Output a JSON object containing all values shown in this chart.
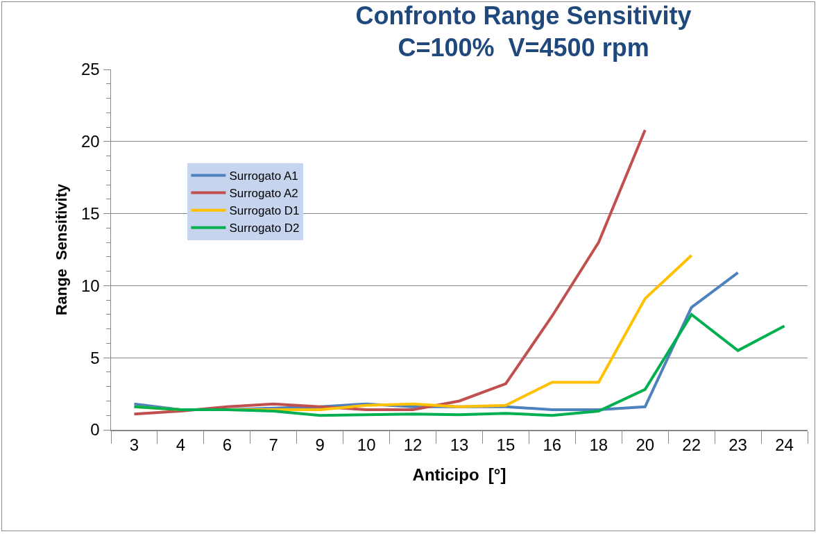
{
  "chart_data": {
    "type": "line",
    "title": "Confronto Range Sensitivity",
    "subtitle": "C=100%  V=4500 rpm",
    "xlabel": "Anticipo  [°]",
    "ylabel": "Range  Sensitivity",
    "categories": [
      "3",
      "4",
      "6",
      "7",
      "9",
      "10",
      "12",
      "13",
      "15",
      "16",
      "18",
      "20",
      "22",
      "23",
      "24"
    ],
    "series": [
      {
        "name": "Surrogato A1",
        "color": "#4f81bd",
        "values": [
          1.8,
          1.4,
          1.4,
          1.5,
          1.6,
          1.8,
          1.6,
          1.6,
          1.6,
          1.4,
          1.4,
          1.6,
          8.5,
          10.9,
          null
        ]
      },
      {
        "name": "Surrogato A2",
        "color": "#c0504d",
        "values": [
          1.1,
          1.3,
          1.6,
          1.8,
          1.6,
          1.4,
          1.4,
          2.0,
          3.2,
          7.9,
          13.0,
          20.8,
          null,
          null,
          null
        ]
      },
      {
        "name": "Surrogato D1",
        "color": "#ffc000",
        "values": [
          1.6,
          1.4,
          1.4,
          1.4,
          1.4,
          1.7,
          1.8,
          1.6,
          1.7,
          3.3,
          3.3,
          9.1,
          12.1,
          null,
          null
        ]
      },
      {
        "name": "Surrogato D2",
        "color": "#00b050",
        "values": [
          1.6,
          1.4,
          1.4,
          1.3,
          1.0,
          1.05,
          1.1,
          1.05,
          1.15,
          1.0,
          1.3,
          2.8,
          8.0,
          5.5,
          7.2
        ]
      }
    ],
    "ylim": [
      0,
      25
    ],
    "yticks": [
      0,
      {
        "value": 1,
        "label": null
      },
      {
        "value": 2,
        "label": null
      },
      {
        "value": 3,
        "label": null
      },
      {
        "value": 4,
        "label": null
      },
      5,
      {
        "value": 6,
        "label": null
      },
      {
        "value": 7,
        "label": null
      },
      {
        "value": 8,
        "label": null
      },
      {
        "value": 9,
        "label": null
      },
      10,
      {
        "value": 11,
        "label": null
      },
      {
        "value": 12,
        "label": null
      },
      {
        "value": 13,
        "label": null
      },
      {
        "value": 14,
        "label": null
      },
      15,
      {
        "value": 16,
        "label": null
      },
      {
        "value": 17,
        "label": null
      },
      {
        "value": 18,
        "label": null
      },
      {
        "value": 19,
        "label": null
      },
      20,
      {
        "value": 21,
        "label": null
      },
      {
        "value": 22,
        "label": null
      },
      {
        "value": 23,
        "label": null
      },
      {
        "value": 24,
        "label": null
      },
      25
    ],
    "grid": "y",
    "legend": "top left",
    "marker": "none",
    "line_style": "solid"
  }
}
